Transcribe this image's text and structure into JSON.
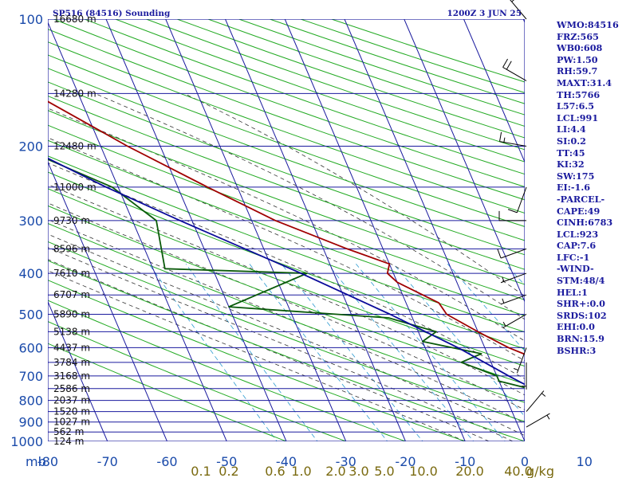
{
  "chart_data": {
    "type": "line",
    "title": "SP516 (84516) Sounding",
    "time_label": "1200Z  3 JUN 25",
    "y_axis_unit": "mb",
    "x_axis_unit": "°C",
    "mixing_unit": "g/kg",
    "xlim": [
      -80,
      0
    ],
    "ylim": [
      1000,
      100
    ],
    "y_scale": "log",
    "grid": true,
    "x_ticks": [
      -80,
      -70,
      -60,
      -50,
      -40,
      -30,
      -20,
      -10,
      0,
      10,
      20,
      30,
      40
    ],
    "x_tick_labels": [
      "-80",
      "-70",
      "-60",
      "-50",
      "-40",
      "-30",
      "-20",
      "-10",
      "0",
      "10",
      "20",
      "30",
      "40"
    ],
    "pressure_ticks": [
      1000,
      900,
      800,
      700,
      600,
      500,
      400,
      300,
      200,
      100
    ],
    "pressure_tick_labels": [
      "1000",
      "900",
      "800",
      "700",
      "600",
      "500",
      "400",
      "300",
      "200",
      "100"
    ],
    "pressure_grid": [
      1000,
      950,
      900,
      850,
      800,
      750,
      700,
      650,
      600,
      550,
      500,
      450,
      400,
      350,
      300,
      250,
      200,
      150,
      100
    ],
    "height_labels": [
      {
        "p": 1000,
        "text": "124 m"
      },
      {
        "p": 950,
        "text": "562 m"
      },
      {
        "p": 900,
        "text": "1027 m"
      },
      {
        "p": 850,
        "text": "1520 m"
      },
      {
        "p": 800,
        "text": "2037 m"
      },
      {
        "p": 750,
        "text": "2586 m"
      },
      {
        "p": 700,
        "text": "3168 m"
      },
      {
        "p": 650,
        "text": "3784 m"
      },
      {
        "p": 600,
        "text": "4437 m"
      },
      {
        "p": 550,
        "text": "5138 m"
      },
      {
        "p": 500,
        "text": "5890 m"
      },
      {
        "p": 450,
        "text": "6707 m"
      },
      {
        "p": 400,
        "text": "7610 m"
      },
      {
        "p": 350,
        "text": "8596 m"
      },
      {
        "p": 300,
        "text": "9730 m"
      },
      {
        "p": 250,
        "text": "11000 m"
      },
      {
        "p": 200,
        "text": "12480 m"
      },
      {
        "p": 150,
        "text": "14280 m"
      },
      {
        "p": 100,
        "text": "16680 m"
      }
    ],
    "mixing_ratio_labels": [
      "0.1",
      "0.2",
      "0.6",
      "1.0",
      "2.0",
      "3.0",
      "5.0",
      "10.0",
      "20.0",
      "40.0"
    ],
    "series": [
      {
        "name": "Temperature",
        "color": "#a00000",
        "points": [
          {
            "p": 1000,
            "t": 18.5
          },
          {
            "p": 980,
            "t": 18.2
          },
          {
            "p": 950,
            "t": 18.5
          },
          {
            "p": 925,
            "t": 20.0
          },
          {
            "p": 900,
            "t": 17.0
          },
          {
            "p": 850,
            "t": 16.5
          },
          {
            "p": 800,
            "t": 15.2
          },
          {
            "p": 750,
            "t": 12.5
          },
          {
            "p": 700,
            "t": 11.0
          },
          {
            "p": 650,
            "t": 9.0
          },
          {
            "p": 600,
            "t": 4.0
          },
          {
            "p": 550,
            "t": 0.0
          },
          {
            "p": 500,
            "t": -4.0
          },
          {
            "p": 470,
            "t": -4.5
          },
          {
            "p": 420,
            "t": -10.0
          },
          {
            "p": 400,
            "t": -11.0
          },
          {
            "p": 380,
            "t": -10.0
          },
          {
            "p": 350,
            "t": -16.0
          },
          {
            "p": 300,
            "t": -26.0
          },
          {
            "p": 250,
            "t": -35.0
          },
          {
            "p": 200,
            "t": -45.5
          },
          {
            "p": 150,
            "t": -57.5
          },
          {
            "p": 140,
            "t": -58.5
          },
          {
            "p": 125,
            "t": -65.0
          },
          {
            "p": 100,
            "t": -67.0
          }
        ]
      },
      {
        "name": "Dewpoint",
        "color": "#0a5a0a",
        "points": [
          {
            "p": 1000,
            "t": 18.0
          },
          {
            "p": 980,
            "t": 17.5
          },
          {
            "p": 950,
            "t": 16.0
          },
          {
            "p": 900,
            "t": 12.0
          },
          {
            "p": 875,
            "t": 14.0
          },
          {
            "p": 850,
            "t": 12.5
          },
          {
            "p": 800,
            "t": 5.0
          },
          {
            "p": 750,
            "t": 4.5
          },
          {
            "p": 720,
            "t": 0.0
          },
          {
            "p": 700,
            "t": 0.0
          },
          {
            "p": 650,
            "t": -5.0
          },
          {
            "p": 620,
            "t": -1.0
          },
          {
            "p": 580,
            "t": -10.0
          },
          {
            "p": 550,
            "t": -7.0
          },
          {
            "p": 510,
            "t": -14.0
          },
          {
            "p": 480,
            "t": -40.0
          },
          {
            "p": 400,
            "t": -24.5
          },
          {
            "p": 390,
            "t": -48.0
          },
          {
            "p": 300,
            "t": -46.0
          },
          {
            "p": 250,
            "t": -51.0
          },
          {
            "p": 200,
            "t": -64.0
          },
          {
            "p": 150,
            "t": -71.0
          },
          {
            "p": 145,
            "t": -72.0
          }
        ]
      },
      {
        "name": "Parcel",
        "color": "#0a0a9a",
        "points": [
          {
            "p": 1000,
            "t": 21.0
          },
          {
            "p": 950,
            "t": 16.5
          },
          {
            "p": 923,
            "t": 14.0
          },
          {
            "p": 850,
            "t": 10.5
          },
          {
            "p": 800,
            "t": 8.0
          },
          {
            "p": 700,
            "t": 2.0
          },
          {
            "p": 600,
            "t": -4.5
          },
          {
            "p": 500,
            "t": -13.5
          },
          {
            "p": 400,
            "t": -25.5
          },
          {
            "p": 300,
            "t": -42.0
          },
          {
            "p": 250,
            "t": -52.0
          },
          {
            "p": 200,
            "t": -63.0
          },
          {
            "p": 150,
            "t": -76.0
          },
          {
            "p": 140,
            "t": -79.0
          }
        ]
      }
    ],
    "wind_barbs": [
      {
        "p": 100,
        "dir": 320,
        "spd": 20
      },
      {
        "p": 140,
        "dir": 300,
        "spd": 20
      },
      {
        "p": 200,
        "dir": 280,
        "spd": 15
      },
      {
        "p": 250,
        "dir": 200,
        "spd": 10
      },
      {
        "p": 300,
        "dir": 270,
        "spd": 10
      },
      {
        "p": 350,
        "dir": 250,
        "spd": 10
      },
      {
        "p": 400,
        "dir": 250,
        "spd": 5
      },
      {
        "p": 450,
        "dir": 250,
        "spd": 5
      },
      {
        "p": 500,
        "dir": 240,
        "spd": 5
      },
      {
        "p": 600,
        "dir": 200,
        "spd": 5
      },
      {
        "p": 650,
        "dir": 180,
        "spd": 5
      },
      {
        "p": 850,
        "dir": 40,
        "spd": 5
      },
      {
        "p": 925,
        "dir": 60,
        "spd": 5
      }
    ]
  },
  "indices": [
    "WMO:84516",
    "FRZ:565",
    "WB0:608",
    "PW:1.50",
    "RH:59.7",
    "MAXT:31.4",
    "TH:5766",
    "L57:6.5",
    "LCL:991",
    "LI:4.4",
    "SI:0.2",
    "TT:45",
    "KI:32",
    "SW:175",
    "EI:-1.6",
    "-PARCEL-",
    "CAPE:49",
    "CINH:6783",
    "LCL:923",
    "CAP:7.6",
    "LFC:-1",
    "-WIND-",
    "STM:48/4",
    "HEL:1",
    "SHR+:0.0",
    "SRDS:102",
    "EHI:0.0",
    "BRN:15.9",
    "BSHR:3"
  ],
  "colors": {
    "frame": "#1a1a9e",
    "isotherm": "#1a1a9e",
    "isobar": "#1a1a9e",
    "dry_adiabat": "#22aa22",
    "moist_adiabat": "#333333",
    "mixing_ratio": "#2a9ad0",
    "mixing_label": "#7a6a10",
    "axis_label": "#1a4aaa",
    "barb": "#000000"
  }
}
